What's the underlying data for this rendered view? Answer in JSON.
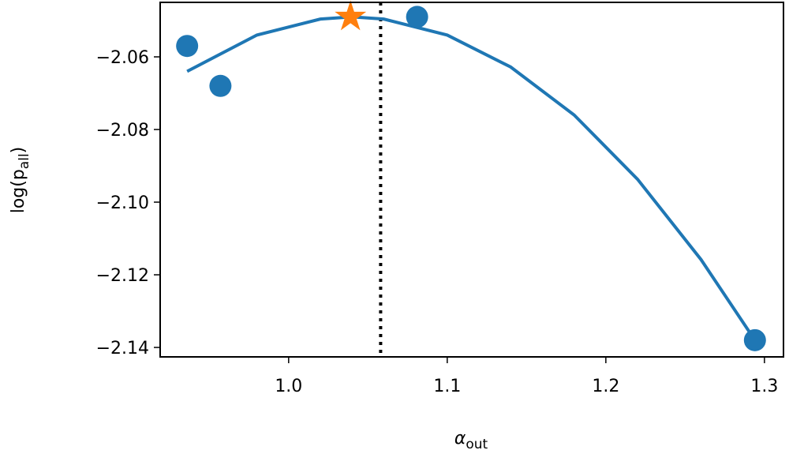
{
  "chart_data": {
    "type": "scatter",
    "xlabel": "α",
    "xlabel_sub": "out",
    "ylabel": "log(p",
    "ylabel_sub": "all",
    "ylabel_end": ")",
    "xlim": [
      0.919,
      1.312
    ],
    "ylim": [
      -2.1426,
      -2.045
    ],
    "xticks": [
      {
        "value": 1,
        "label": "1.0"
      },
      1.1,
      1.2,
      1.3
    ],
    "yticks": [
      {
        "value": -2.06,
        "label": "−2.06"
      },
      {
        "value": -2.08,
        "label": "−2.08"
      },
      {
        "value": -2.1,
        "label": "−2.10"
      },
      {
        "value": -2.12,
        "label": "−2.12"
      },
      {
        "value": -2.14,
        "label": "−2.14"
      }
    ],
    "points": {
      "color": "#1f77b4",
      "x": [
        0.936,
        0.957,
        1.081,
        1.294
      ],
      "y": [
        -2.057,
        -2.068,
        -2.049,
        -2.138
      ]
    },
    "fit": {
      "color": "#1f77b4",
      "x": [
        0.936,
        0.98,
        1.02,
        1.04,
        1.06,
        1.1,
        1.14,
        1.18,
        1.22,
        1.26,
        1.294
      ],
      "y": [
        -2.064,
        -2.054,
        -2.0496,
        -2.049,
        -2.0496,
        -2.054,
        -2.0628,
        -2.076,
        -2.0937,
        -2.1158,
        -2.138
      ]
    },
    "best": {
      "color": "#ff7f0e",
      "marker": "star",
      "x": [
        1.039
      ],
      "y": [
        -2.049
      ]
    },
    "vline": {
      "color": "#000000",
      "style": "dotted",
      "x": 1.058
    }
  }
}
